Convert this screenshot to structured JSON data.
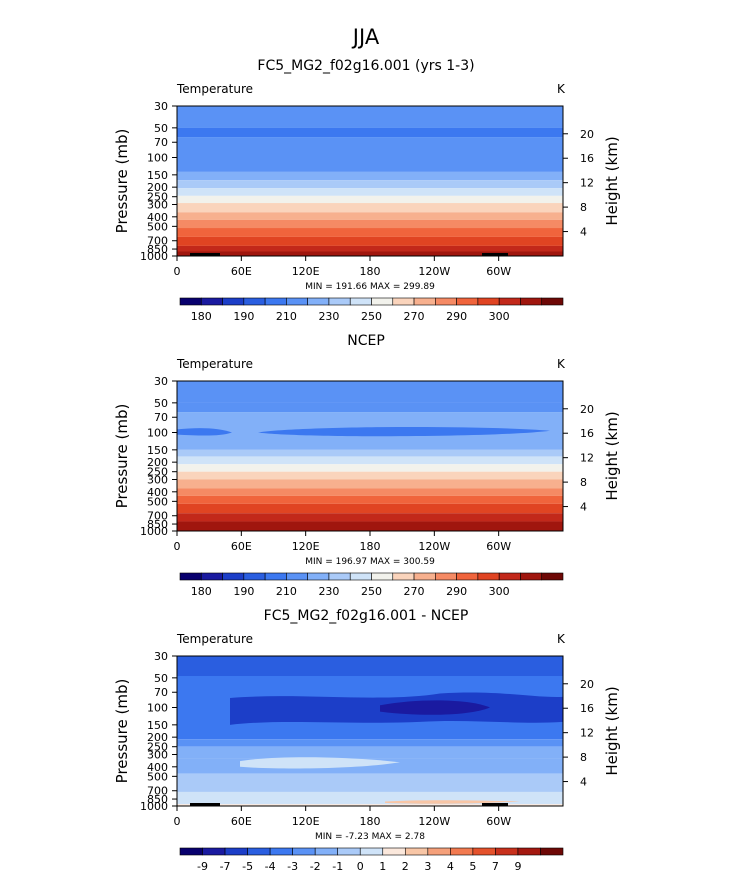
{
  "figure_title": "JJA",
  "chart_data": [
    {
      "type": "heatmap",
      "title": "FC5_MG2_f02g16.001 (yrs 1-3)",
      "left_label": "Temperature",
      "right_label": "K",
      "ylabel": "Pressure (mb)",
      "ylabel_right": "Height (km)",
      "x_ticks": [
        "0",
        "60E",
        "120E",
        "180",
        "120W",
        "60W"
      ],
      "y_ticks": [
        "30",
        "50",
        "70",
        "100",
        "150",
        "200",
        "250",
        "300",
        "400",
        "500",
        "700",
        "850",
        "1000"
      ],
      "y_ticks_right": [
        "20",
        "16",
        "12",
        "8",
        "4"
      ],
      "stats": "MIN = 191.66  MAX = 299.89",
      "colorbar_labels": [
        "180",
        "190",
        "210",
        "230",
        "250",
        "270",
        "290",
        "300"
      ]
    },
    {
      "type": "heatmap",
      "title": "NCEP",
      "left_label": "Temperature",
      "right_label": "K",
      "ylabel": "Pressure (mb)",
      "ylabel_right": "Height (km)",
      "x_ticks": [
        "0",
        "60E",
        "120E",
        "180",
        "120W",
        "60W"
      ],
      "y_ticks": [
        "30",
        "50",
        "70",
        "100",
        "150",
        "200",
        "250",
        "300",
        "400",
        "500",
        "700",
        "850",
        "1000"
      ],
      "y_ticks_right": [
        "20",
        "16",
        "12",
        "8",
        "4"
      ],
      "stats": "MIN = 196.97  MAX = 300.59",
      "colorbar_labels": [
        "180",
        "190",
        "210",
        "230",
        "250",
        "270",
        "290",
        "300"
      ]
    },
    {
      "type": "heatmap",
      "title": "FC5_MG2_f02g16.001 - NCEP",
      "left_label": "Temperature",
      "right_label": "K",
      "ylabel": "Pressure (mb)",
      "ylabel_right": "Height (km)",
      "x_ticks": [
        "0",
        "60E",
        "120E",
        "180",
        "120W",
        "60W"
      ],
      "y_ticks": [
        "30",
        "50",
        "70",
        "100",
        "150",
        "200",
        "250",
        "300",
        "400",
        "500",
        "700",
        "850",
        "1000"
      ],
      "y_ticks_right": [
        "20",
        "16",
        "12",
        "8",
        "4"
      ],
      "stats": "MIN =  -7.23  MAX =   2.78",
      "colorbar_labels": [
        "-9",
        "-7",
        "-5",
        "-4",
        "-3",
        "-2",
        "-1",
        "0",
        "1",
        "2",
        "3",
        "4",
        "5",
        "7",
        "9"
      ]
    }
  ],
  "colors": {
    "abs_palette": [
      "#08006e",
      "#1a1aa0",
      "#1c3ec8",
      "#2a5ee0",
      "#3c78f0",
      "#5a92f5",
      "#82b0f8",
      "#aacaf8",
      "#cfe3f8",
      "#f2f2ec",
      "#fad4bc",
      "#f7b08e",
      "#f58a64",
      "#f0643c",
      "#e04422",
      "#c2281a",
      "#a0160e",
      "#6e0806"
    ],
    "diff_palette": [
      "#08006e",
      "#1a1aa0",
      "#1c3ec8",
      "#2a5ee0",
      "#3c78f0",
      "#5a92f5",
      "#82b0f8",
      "#aacaf8",
      "#cfe3f8",
      "#fbe8dc",
      "#f8c6a6",
      "#f5a07a",
      "#f27a50",
      "#e4522c",
      "#c8301c",
      "#a41810",
      "#6e0806"
    ]
  }
}
